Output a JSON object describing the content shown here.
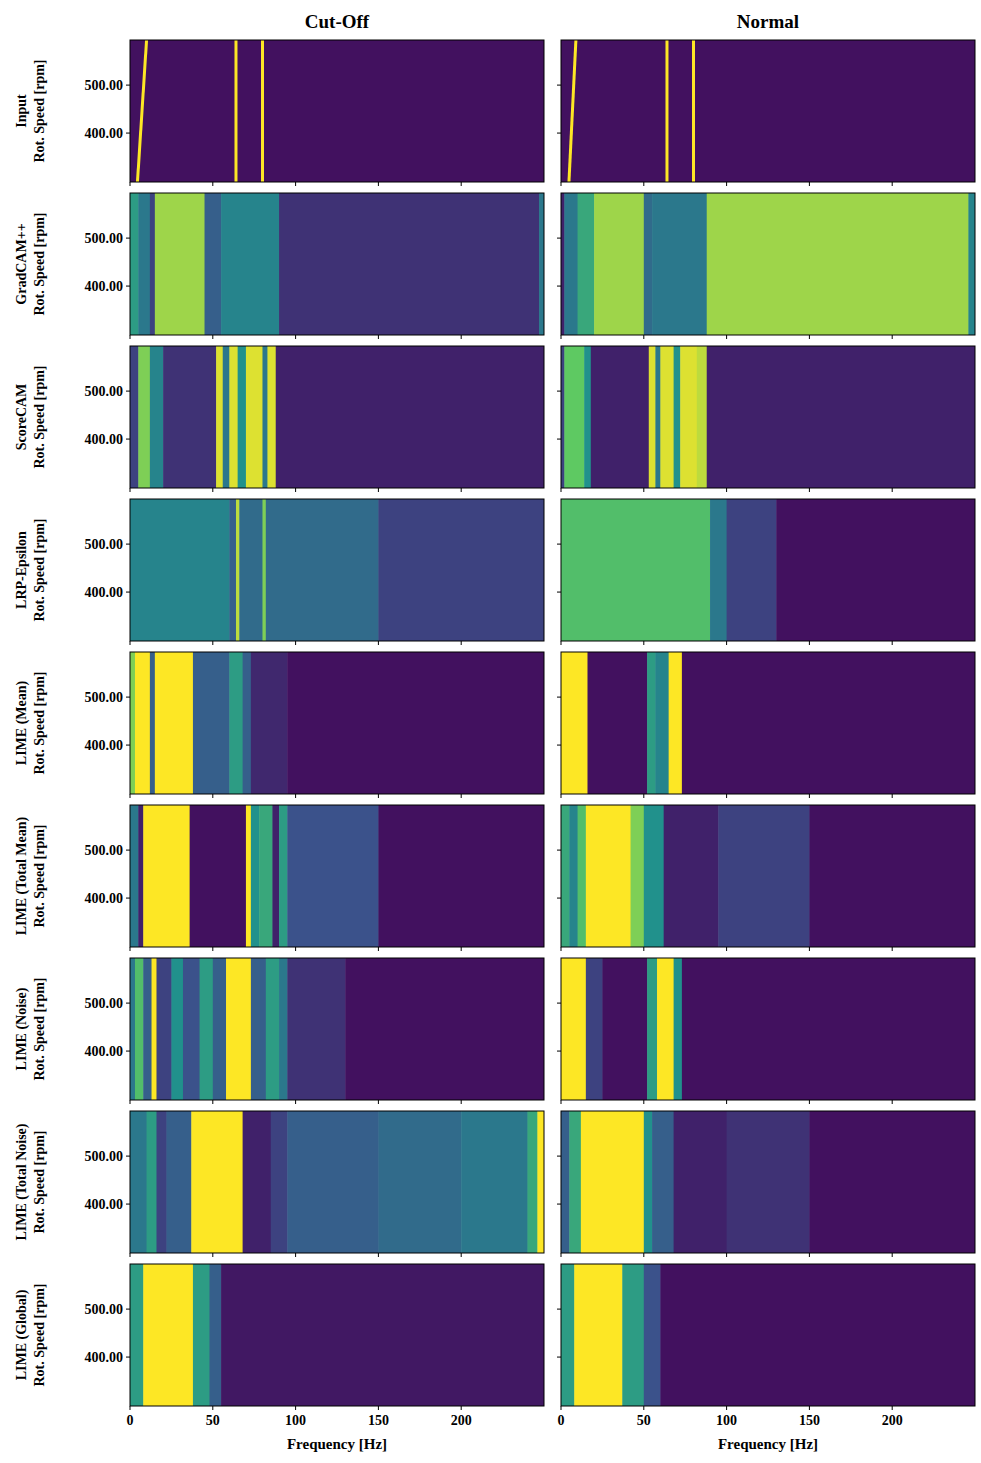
{
  "chart_data": {
    "type": "heatmap",
    "columns": [
      "Cut-Off",
      "Normal"
    ],
    "xlabel": "Frequency [Hz]",
    "ylabel": "Rot. Speed [rpm]",
    "xlim": [
      0,
      250
    ],
    "ylim": [
      298,
      594
    ],
    "xticks": [
      0,
      50,
      100,
      150,
      200
    ],
    "yticks": [
      {
        "value": 400,
        "label": "400.00"
      },
      {
        "value": 500,
        "label": "500.00"
      }
    ],
    "rows": [
      {
        "label": "Input",
        "panels": [
          {
            "background": 0.05,
            "lines": [
              {
                "x": [
                  4.5,
                  10
                ],
                "value": 1
              },
              {
                "x": [
                  64,
                  64
                ],
                "value": 1
              },
              {
                "x": [
                  80,
                  80
                ],
                "value": 1
              }
            ]
          },
          {
            "background": 0.05,
            "lines": [
              {
                "x": [
                  4.8,
                  9
                ],
                "value": 1
              },
              {
                "x": [
                  64,
                  64
                ],
                "value": 1
              },
              {
                "x": [
                  80,
                  80
                ],
                "value": 1
              }
            ]
          }
        ]
      },
      {
        "label": "GradCAM++",
        "panels": [
          {
            "edges": [
              0,
              5,
              12,
              15,
              45,
              55,
              90,
              247,
              250
            ],
            "values": [
              0.55,
              0.4,
              0.2,
              0.85,
              0.3,
              0.45,
              0.15,
              0.4
            ]
          },
          {
            "edges": [
              0,
              2,
              10,
              20,
              50,
              55,
              88,
              246,
              250
            ],
            "values": [
              0.1,
              0.4,
              0.6,
              0.85,
              0.35,
              0.4,
              0.85,
              0.45
            ]
          }
        ]
      },
      {
        "label": "ScoreCAM",
        "panels": [
          {
            "edges": [
              0,
              5,
              12,
              20,
              52,
              56,
              60,
              65,
              70,
              80,
              83,
              88,
              250
            ],
            "values": [
              0.2,
              0.8,
              0.45,
              0.15,
              0.95,
              0.4,
              0.95,
              0.5,
              0.95,
              0.4,
              0.95,
              0.1
            ]
          },
          {
            "edges": [
              0,
              2,
              14,
              18,
              53,
              57,
              60,
              68,
              72,
              82,
              88,
              250
            ],
            "values": [
              0.2,
              0.75,
              0.5,
              0.1,
              0.95,
              0.4,
              0.95,
              0.5,
              0.95,
              0.9,
              0.1
            ]
          }
        ]
      },
      {
        "label": "LRP-Epsilon",
        "panels": [
          {
            "edges": [
              0,
              60,
              64,
              66,
              80,
              82,
              150,
              250
            ],
            "values": [
              0.45,
              0.3,
              0.9,
              0.35,
              0.8,
              0.35,
              0.2
            ]
          },
          {
            "edges": [
              0,
              90,
              100,
              130,
              250
            ],
            "values": [
              0.7,
              0.4,
              0.2,
              0.05
            ]
          }
        ]
      },
      {
        "label": "LIME (Mean)",
        "panels": [
          {
            "edges": [
              0,
              3,
              12,
              15,
              38,
              60,
              68,
              73,
              95,
              250
            ],
            "values": [
              0.8,
              1,
              0.3,
              1,
              0.3,
              0.55,
              0.3,
              0.12,
              0.05
            ]
          },
          {
            "edges": [
              0,
              16,
              52,
              57,
              65,
              73,
              250
            ],
            "values": [
              1,
              0.05,
              0.55,
              0.45,
              1,
              0.05
            ]
          }
        ]
      },
      {
        "label": "LIME (Total Mean)",
        "panels": [
          {
            "edges": [
              0,
              5,
              8,
              36,
              70,
              73,
              78,
              86,
              90,
              95,
              150,
              250
            ],
            "values": [
              0.4,
              0.1,
              1,
              0.05,
              1,
              0.5,
              0.6,
              0.1,
              0.55,
              0.25,
              0.05
            ]
          },
          {
            "edges": [
              0,
              5,
              10,
              15,
              42,
              50,
              62,
              95,
              150,
              250
            ],
            "values": [
              0.6,
              0.45,
              0.7,
              1,
              0.8,
              0.5,
              0.1,
              0.2,
              0.05
            ]
          }
        ]
      },
      {
        "label": "LIME (Noise)",
        "panels": [
          {
            "edges": [
              0,
              3,
              8,
              13,
              16,
              25,
              32,
              42,
              50,
              58,
              73,
              82,
              90,
              95,
              130,
              250
            ],
            "values": [
              0.4,
              0.7,
              0.3,
              1,
              0.2,
              0.5,
              0.25,
              0.55,
              0.3,
              1,
              0.3,
              0.55,
              0.4,
              0.15,
              0.05
            ]
          },
          {
            "edges": [
              0,
              15,
              25,
              52,
              58,
              68,
              73,
              250
            ],
            "values": [
              1,
              0.2,
              0.05,
              0.55,
              1,
              0.5,
              0.05
            ]
          }
        ]
      },
      {
        "label": "LIME (Total Noise)",
        "panels": [
          {
            "edges": [
              0,
              10,
              16,
              22,
              37,
              68,
              85,
              95,
              150,
              200,
              240,
              246,
              250
            ],
            "values": [
              0.4,
              0.55,
              0.2,
              0.3,
              1,
              0.1,
              0.2,
              0.3,
              0.35,
              0.4,
              0.6,
              1
            ]
          },
          {
            "edges": [
              0,
              5,
              12,
              50,
              55,
              68,
              100,
              150,
              250
            ],
            "values": [
              0.3,
              0.6,
              1,
              0.5,
              0.3,
              0.1,
              0.15,
              0.05
            ]
          }
        ]
      },
      {
        "label": "LIME (Global)",
        "panels": [
          {
            "edges": [
              0,
              8,
              38,
              48,
              55,
              250
            ],
            "values": [
              0.55,
              1,
              0.55,
              0.3,
              0.07
            ]
          },
          {
            "edges": [
              0,
              8,
              37,
              50,
              60,
              250
            ],
            "values": [
              0.55,
              1,
              0.55,
              0.25,
              0.05
            ]
          }
        ]
      }
    ]
  }
}
